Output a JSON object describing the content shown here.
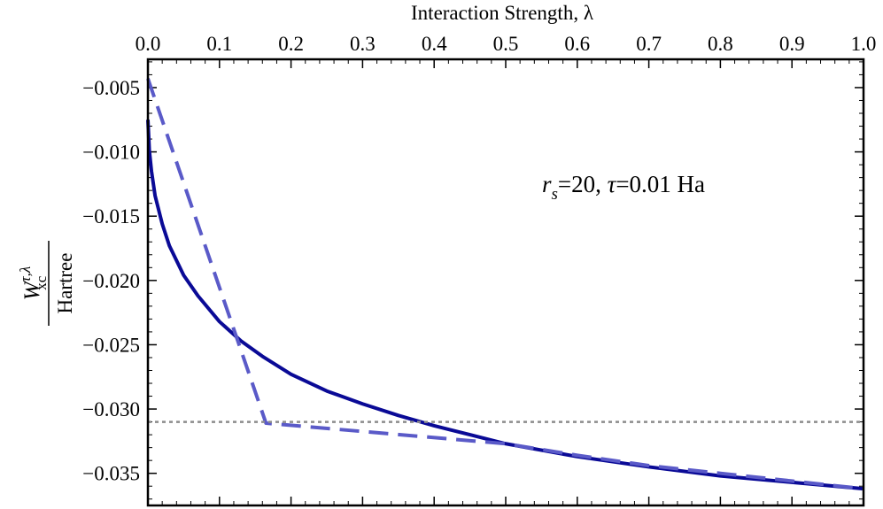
{
  "chart_data": {
    "type": "line",
    "title": "",
    "xlabel": "Interaction Strength, λ",
    "ylabel": {
      "numerator": "W",
      "superscript": "τ,λ",
      "subscript": "xc",
      "denominator": "Hartree"
    },
    "xlim": [
      0.0,
      1.0
    ],
    "ylim": [
      -0.0375,
      -0.0028
    ],
    "xticks": [
      0.0,
      0.1,
      0.2,
      0.3,
      0.4,
      0.5,
      0.6,
      0.7,
      0.8,
      0.9,
      1.0
    ],
    "xtick_labels": [
      "0.0",
      "0.1",
      "0.2",
      "0.3",
      "0.4",
      "0.5",
      "0.6",
      "0.7",
      "0.8",
      "0.9",
      "1.0"
    ],
    "yticks": [
      -0.005,
      -0.01,
      -0.015,
      -0.02,
      -0.025,
      -0.03,
      -0.035
    ],
    "ytick_labels": [
      "−0.005",
      "−0.010",
      "−0.015",
      "−0.020",
      "−0.025",
      "−0.030",
      "−0.035"
    ],
    "grid": false,
    "annotation": {
      "r": "r",
      "s": "s",
      "rest": "=20, ",
      "tau": "τ",
      "tail": "=0.01 Ha"
    },
    "series": [
      {
        "style": "solid",
        "color": "#0a0a96",
        "x": [
          0.0,
          0.002,
          0.005,
          0.01,
          0.02,
          0.03,
          0.05,
          0.07,
          0.1,
          0.13,
          0.16,
          0.2,
          0.25,
          0.3,
          0.35,
          0.4,
          0.45,
          0.5,
          0.6,
          0.7,
          0.8,
          0.9,
          1.0
        ],
        "y": [
          -0.0075,
          -0.0099,
          -0.0115,
          -0.0134,
          -0.0156,
          -0.0173,
          -0.0196,
          -0.0212,
          -0.0232,
          -0.0247,
          -0.0259,
          -0.0273,
          -0.0286,
          -0.0296,
          -0.0305,
          -0.0313,
          -0.032,
          -0.0327,
          -0.0337,
          -0.0345,
          -0.0352,
          -0.0357,
          -0.0362
        ]
      },
      {
        "style": "dashed",
        "color": "#5a5ac8",
        "x": [
          0.0,
          0.165,
          0.5,
          0.6,
          0.7,
          0.8,
          0.9,
          1.0
        ],
        "y": [
          -0.0043,
          -0.0311,
          -0.0327,
          -0.0336,
          -0.0344,
          -0.035,
          -0.0356,
          -0.0362
        ]
      },
      {
        "style": "dotted",
        "color": "#8c8c8c",
        "x": [
          0.0,
          1.0
        ],
        "y": [
          -0.031,
          -0.031
        ]
      }
    ]
  }
}
